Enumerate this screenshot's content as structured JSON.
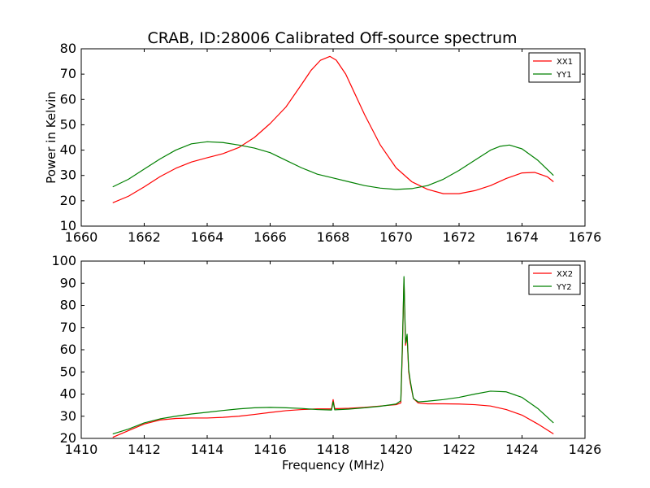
{
  "figure": {
    "title": "CRAB, ID:28006 Calibrated Off-source spectrum"
  },
  "colors": {
    "xx": "#ff0000",
    "yy": "#008000"
  },
  "chart_data": [
    {
      "type": "line",
      "title": "CRAB, ID:28006 Calibrated Off-source spectrum",
      "xlabel": "",
      "ylabel": "Power in Kelvin",
      "xlim": [
        1660,
        1676
      ],
      "ylim": [
        10,
        80
      ],
      "xticks": [
        1660,
        1662,
        1664,
        1666,
        1668,
        1670,
        1672,
        1674,
        1676
      ],
      "yticks": [
        10,
        20,
        30,
        40,
        50,
        60,
        70,
        80
      ],
      "grid": false,
      "legend_position": "top-right",
      "series": [
        {
          "name": "XX1",
          "color": "#ff0000",
          "x": [
            1661.0,
            1661.5,
            1662.0,
            1662.5,
            1663.0,
            1663.5,
            1664.0,
            1664.5,
            1665.0,
            1665.5,
            1666.0,
            1666.5,
            1667.0,
            1667.3,
            1667.6,
            1667.9,
            1668.1,
            1668.4,
            1668.7,
            1669.0,
            1669.5,
            1670.0,
            1670.5,
            1671.0,
            1671.5,
            1672.0,
            1672.5,
            1673.0,
            1673.5,
            1674.0,
            1674.4,
            1674.8,
            1675.0
          ],
          "y": [
            19.2,
            21.8,
            25.5,
            29.5,
            32.8,
            35.3,
            37.0,
            38.6,
            41.0,
            45.0,
            50.5,
            57.0,
            66.0,
            71.5,
            75.5,
            77.0,
            75.5,
            70.0,
            62.0,
            54.0,
            42.0,
            33.0,
            27.5,
            24.5,
            22.8,
            22.8,
            24.0,
            26.0,
            28.8,
            31.0,
            31.2,
            29.5,
            27.5
          ]
        },
        {
          "name": "YY1",
          "color": "#008000",
          "x": [
            1661.0,
            1661.5,
            1662.0,
            1662.5,
            1663.0,
            1663.5,
            1664.0,
            1664.5,
            1665.0,
            1665.5,
            1666.0,
            1666.5,
            1667.0,
            1667.5,
            1668.0,
            1668.5,
            1669.0,
            1669.5,
            1670.0,
            1670.5,
            1671.0,
            1671.5,
            1672.0,
            1672.5,
            1673.0,
            1673.3,
            1673.6,
            1674.0,
            1674.5,
            1675.0
          ],
          "y": [
            25.5,
            28.5,
            32.5,
            36.5,
            40.0,
            42.5,
            43.3,
            43.0,
            42.0,
            40.8,
            39.0,
            36.0,
            33.0,
            30.5,
            29.0,
            27.5,
            26.0,
            25.0,
            24.5,
            24.8,
            26.0,
            28.5,
            32.0,
            36.0,
            40.0,
            41.5,
            42.0,
            40.5,
            36.0,
            30.0
          ]
        }
      ]
    },
    {
      "type": "line",
      "title": "",
      "xlabel": "Frequency (MHz)",
      "ylabel": "",
      "xlim": [
        1410,
        1426
      ],
      "ylim": [
        20,
        100
      ],
      "xticks": [
        1410,
        1412,
        1414,
        1416,
        1418,
        1420,
        1422,
        1424,
        1426
      ],
      "yticks": [
        20,
        30,
        40,
        50,
        60,
        70,
        80,
        90,
        100
      ],
      "grid": false,
      "legend_position": "top-right",
      "series": [
        {
          "name": "XX2",
          "color": "#ff0000",
          "x": [
            1411.0,
            1411.5,
            1412.0,
            1412.5,
            1413.0,
            1413.5,
            1414.0,
            1414.5,
            1415.0,
            1415.5,
            1416.0,
            1416.5,
            1417.0,
            1417.5,
            1417.95,
            1418.0,
            1418.05,
            1418.5,
            1419.0,
            1419.5,
            1420.0,
            1420.15,
            1420.2,
            1420.25,
            1420.3,
            1420.35,
            1420.4,
            1420.45,
            1420.55,
            1420.7,
            1421.0,
            1421.5,
            1422.0,
            1422.5,
            1423.0,
            1423.5,
            1424.0,
            1424.5,
            1425.0
          ],
          "y": [
            20.5,
            23.5,
            26.5,
            28.3,
            29.0,
            29.2,
            29.2,
            29.5,
            30.0,
            30.8,
            31.7,
            32.5,
            33.0,
            33.3,
            33.3,
            37.5,
            33.4,
            33.6,
            34.0,
            34.6,
            35.2,
            36.0,
            60.0,
            92.0,
            62.0,
            66.0,
            50.0,
            45.0,
            38.0,
            36.0,
            35.6,
            35.6,
            35.5,
            35.2,
            34.6,
            33.0,
            30.5,
            26.5,
            22.0
          ]
        },
        {
          "name": "YY2",
          "color": "#008000",
          "x": [
            1411.0,
            1411.5,
            1412.0,
            1412.5,
            1413.0,
            1413.5,
            1414.0,
            1414.5,
            1415.0,
            1415.5,
            1416.0,
            1416.5,
            1417.0,
            1417.5,
            1417.95,
            1418.0,
            1418.05,
            1418.5,
            1419.0,
            1419.5,
            1420.0,
            1420.15,
            1420.2,
            1420.25,
            1420.3,
            1420.35,
            1420.4,
            1420.45,
            1420.55,
            1420.7,
            1421.0,
            1421.5,
            1422.0,
            1422.5,
            1423.0,
            1423.5,
            1424.0,
            1424.5,
            1425.0
          ],
          "y": [
            22.0,
            24.2,
            27.0,
            28.8,
            30.0,
            31.0,
            31.8,
            32.6,
            33.3,
            33.8,
            34.0,
            33.8,
            33.5,
            33.0,
            32.8,
            36.5,
            32.9,
            33.2,
            33.8,
            34.5,
            35.5,
            37.0,
            62.0,
            93.0,
            63.0,
            67.0,
            51.0,
            46.0,
            38.0,
            36.5,
            36.8,
            37.5,
            38.5,
            40.0,
            41.3,
            41.0,
            38.5,
            33.5,
            27.0
          ]
        }
      ]
    }
  ]
}
